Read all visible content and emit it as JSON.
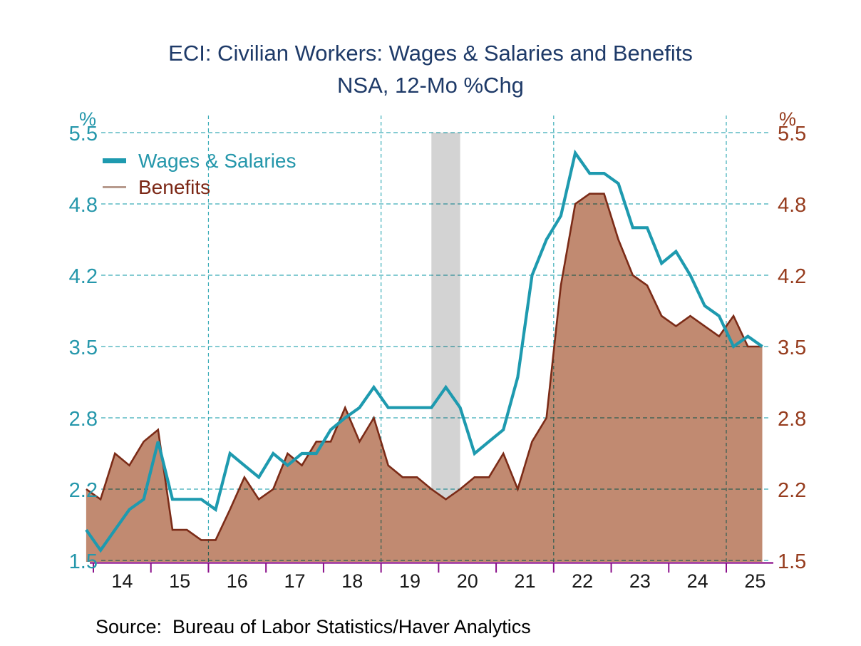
{
  "title": {
    "line1": "ECI: Civilian Workers: Wages & Salaries and Benefits",
    "line2": "NSA, 12-Mo %Chg"
  },
  "legend": {
    "items": [
      {
        "label": "Wages & Salaries",
        "color": "#1E9AAF"
      },
      {
        "label": "Benefits",
        "color": "#7B2715"
      }
    ]
  },
  "source": {
    "text": "Source:  Bureau of Labor Statistics/Haver Analytics"
  },
  "chart_data": {
    "type": "line",
    "frequency": "quarterly",
    "title": "ECI: Civilian Workers: Wages & Salaries and Benefits",
    "subtitle": "NSA, 12-Mo %Chg",
    "ylabel_left": "%",
    "ylabel_right": "%",
    "y_ticks": [
      1.5,
      2.2,
      2.8,
      3.5,
      4.2,
      4.8,
      5.5
    ],
    "ylim": [
      1.5,
      5.5
    ],
    "x_year_labels": [
      "14",
      "15",
      "16",
      "17",
      "18",
      "19",
      "20",
      "21",
      "22",
      "23",
      "24",
      "25"
    ],
    "vertical_gridline_years": [
      "16",
      "19",
      "22",
      "25"
    ],
    "grid": {
      "on": true,
      "color": "#3AACB7",
      "style": "dashed"
    },
    "legend_position": "top-left-inside",
    "recession_band": {
      "from": "2019 Q4",
      "to": "2020 Q2",
      "color": "#D3D3D3"
    },
    "categories": [
      "2013 Q4",
      "2014 Q1",
      "2014 Q2",
      "2014 Q3",
      "2014 Q4",
      "2015 Q1",
      "2015 Q2",
      "2015 Q3",
      "2015 Q4",
      "2016 Q1",
      "2016 Q2",
      "2016 Q3",
      "2016 Q4",
      "2017 Q1",
      "2017 Q2",
      "2017 Q3",
      "2017 Q4",
      "2018 Q1",
      "2018 Q2",
      "2018 Q3",
      "2018 Q4",
      "2019 Q1",
      "2019 Q2",
      "2019 Q3",
      "2019 Q4",
      "2020 Q1",
      "2020 Q2",
      "2020 Q3",
      "2020 Q4",
      "2021 Q1",
      "2021 Q2",
      "2021 Q3",
      "2021 Q4",
      "2022 Q1",
      "2022 Q2",
      "2022 Q3",
      "2022 Q4",
      "2023 Q1",
      "2023 Q2",
      "2023 Q3",
      "2023 Q4",
      "2024 Q1",
      "2024 Q2",
      "2024 Q3",
      "2024 Q4",
      "2025 Q1",
      "2025 Q2",
      "2025 Q3"
    ],
    "series": [
      {
        "name": "Wages & Salaries",
        "style": "line",
        "color": "#1E9AAF",
        "values": [
          1.8,
          1.6,
          1.8,
          2.0,
          2.1,
          2.6,
          2.1,
          2.1,
          2.1,
          2.0,
          2.5,
          2.4,
          2.3,
          2.5,
          2.4,
          2.5,
          2.5,
          2.7,
          2.8,
          2.9,
          3.1,
          2.9,
          2.9,
          2.9,
          2.9,
          3.1,
          2.9,
          2.5,
          2.6,
          2.7,
          3.2,
          4.2,
          4.5,
          4.7,
          5.3,
          5.1,
          5.1,
          5.0,
          4.6,
          4.6,
          4.3,
          4.4,
          4.2,
          3.9,
          3.8,
          3.5,
          3.6,
          3.5
        ]
      },
      {
        "name": "Benefits",
        "style": "area",
        "color": "#7B2B17",
        "fill": "#C18A71",
        "values": [
          2.2,
          2.1,
          2.5,
          2.4,
          2.6,
          2.7,
          1.8,
          1.8,
          1.7,
          1.7,
          2.0,
          2.3,
          2.1,
          2.2,
          2.5,
          2.4,
          2.6,
          2.6,
          2.9,
          2.6,
          2.8,
          2.4,
          2.3,
          2.3,
          2.2,
          2.1,
          2.2,
          2.3,
          2.3,
          2.5,
          2.2,
          2.6,
          2.8,
          4.1,
          4.8,
          4.9,
          4.9,
          4.5,
          4.2,
          4.1,
          3.8,
          3.7,
          3.8,
          3.7,
          3.6,
          3.8,
          3.5,
          3.5
        ]
      }
    ],
    "colors": {
      "left_axis_text": "#2597AB",
      "right_axis_text": "#963C1E",
      "x_axis_line": "#8A0F8A",
      "x_axis_labels": "#1A1A1A",
      "gridline": "#3AACB7",
      "title_text": "#1E3A68"
    }
  }
}
